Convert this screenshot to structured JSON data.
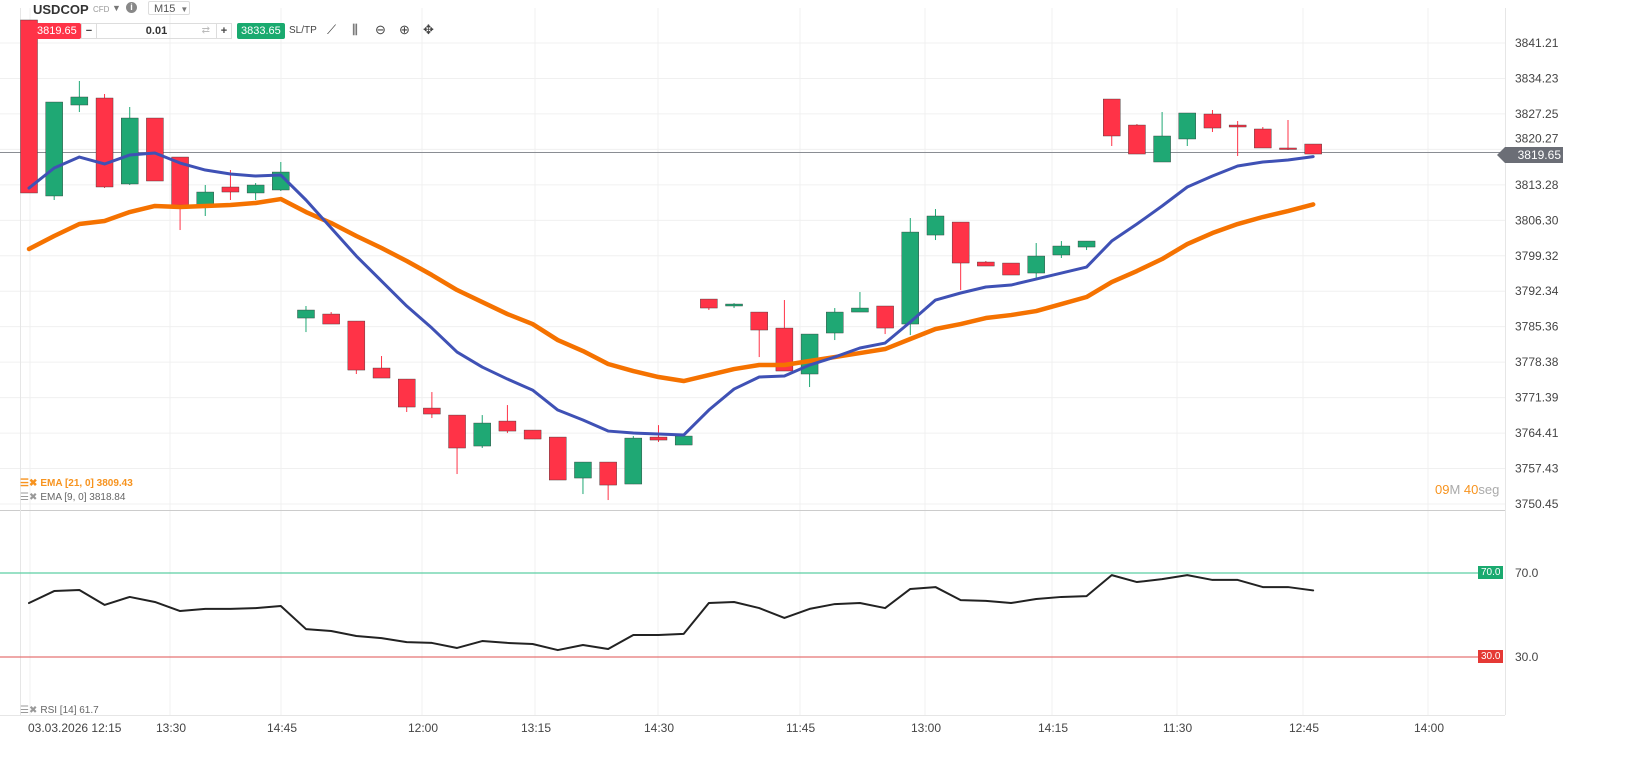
{
  "header": {
    "symbol": "USDCOP",
    "type": "CFD",
    "timeframe": "M15"
  },
  "trade": {
    "sell_price": "3819.65",
    "quantity": "0.01",
    "buy_price": "3833.65",
    "sltp_label": "SL/TP",
    "minus": "−",
    "plus": "+"
  },
  "toolbar_icons": [
    "line-chart-icon",
    "candlestick-icon",
    "zoom-out-icon",
    "zoom-in-icon",
    "move-icon"
  ],
  "legends": {
    "ema21": "EMA [21, 0] 3809.43",
    "ema9": "EMA [9, 0] 3818.84",
    "rsi": "RSI [14] 61.7"
  },
  "countdown": {
    "min": "09",
    "min_unit": "M ",
    "sec": "40",
    "sec_unit": "seg"
  },
  "last_price_label": "3819.65",
  "rsi_levels": {
    "upper": "70.0",
    "lower": "30.0"
  },
  "colors": {
    "up": "#1fa874",
    "down": "#ff3347",
    "ema9": "#3f51b5",
    "ema21": "#f57200",
    "rsi": "#222222",
    "rsi_upper": "#5ccfa4",
    "rsi_lower": "#e57373"
  },
  "chart_data": [
    {
      "type": "candlestick",
      "ylim": [
        3750.45,
        3841.21
      ],
      "yticks": [
        "3841.21",
        "3834.23",
        "3827.25",
        "3820.27",
        "3813.28",
        "3806.30",
        "3799.32",
        "3792.34",
        "3785.36",
        "3778.38",
        "3771.39",
        "3764.41",
        "3757.43",
        "3750.45"
      ],
      "xticks": [
        "03.03.2026 12:15",
        "13:30",
        "14:45",
        "12:00",
        "13:15",
        "14:30",
        "11:45",
        "13:00",
        "14:15",
        "11:30",
        "12:45",
        "14:00"
      ],
      "last_price": 3819.65,
      "ohlc": [
        [
          3845.74,
          3845.74,
          3811.68,
          3811.68
        ],
        [
          3811.09,
          3829.59,
          3810.3,
          3829.59
        ],
        [
          3829.0,
          3833.73,
          3827.62,
          3830.58
        ],
        [
          3830.38,
          3831.17,
          3812.66,
          3812.86
        ],
        [
          3813.45,
          3828.61,
          3813.25,
          3826.44
        ],
        [
          3826.44,
          3826.44,
          3814.04,
          3814.04
        ],
        [
          3818.76,
          3818.76,
          3804.39,
          3809.31
        ],
        [
          3809.31,
          3813.25,
          3807.15,
          3811.87
        ],
        [
          3812.86,
          3816.2,
          3810.3,
          3811.87
        ],
        [
          3811.68,
          3813.64,
          3810.3,
          3813.25
        ],
        [
          3812.27,
          3817.78,
          3812.07,
          3815.81
        ],
        [
          3787.06,
          3789.43,
          3784.3,
          3788.64
        ],
        [
          3787.85,
          3788.24,
          3785.88,
          3785.88
        ],
        [
          3786.47,
          3786.47,
          3776.04,
          3776.82
        ],
        [
          3777.22,
          3779.58,
          3775.25,
          3775.25
        ],
        [
          3775.05,
          3775.05,
          3768.56,
          3769.54
        ],
        [
          3769.34,
          3772.49,
          3767.37,
          3768.16
        ],
        [
          3767.96,
          3767.96,
          3756.35,
          3761.47
        ],
        [
          3761.86,
          3767.96,
          3761.47,
          3766.39
        ],
        [
          3766.78,
          3769.93,
          3764.42,
          3764.81
        ],
        [
          3765.01,
          3765.01,
          3763.24,
          3763.24
        ],
        [
          3763.63,
          3763.63,
          3755.17,
          3755.17
        ],
        [
          3755.56,
          3758.71,
          3752.41,
          3758.71
        ],
        [
          3758.71,
          3758.71,
          3751.23,
          3754.18
        ],
        [
          3754.38,
          3763.83,
          3754.38,
          3763.43
        ],
        [
          3763.63,
          3765.99,
          3762.65,
          3763.04
        ],
        [
          3762.06,
          3763.83,
          3762.06,
          3763.83
        ],
        [
          3790.8,
          3790.8,
          3788.64,
          3789.03
        ],
        [
          3789.43,
          3790.0,
          3789.03,
          3789.82
        ],
        [
          3788.24,
          3788.24,
          3779.38,
          3784.7
        ],
        [
          3785.09,
          3790.61,
          3776.63,
          3776.63
        ],
        [
          3776.04,
          3783.91,
          3773.48,
          3783.91
        ],
        [
          3784.11,
          3789.03,
          3782.73,
          3788.24
        ],
        [
          3788.24,
          3792.18,
          3788.24,
          3789.03
        ],
        [
          3789.43,
          3789.43,
          3783.91,
          3785.09
        ],
        [
          3785.88,
          3806.75,
          3783.71,
          3803.99
        ],
        [
          3803.4,
          3808.52,
          3802.42,
          3807.15
        ],
        [
          3805.96,
          3805.96,
          3792.58,
          3797.89
        ],
        [
          3798.09,
          3798.29,
          3797.3,
          3797.3
        ],
        [
          3797.89,
          3797.89,
          3795.53,
          3795.53
        ],
        [
          3795.92,
          3801.83,
          3794.54,
          3799.27
        ],
        [
          3799.47,
          3802.22,
          3798.88,
          3801.24
        ],
        [
          3801.04,
          3802.22,
          3800.45,
          3802.22
        ],
        [
          3830.18,
          3830.18,
          3820.93,
          3822.9
        ],
        [
          3825.06,
          3825.26,
          3819.35,
          3819.35
        ],
        [
          3817.78,
          3827.62,
          3817.78,
          3822.9
        ],
        [
          3822.31,
          3827.43,
          3820.93,
          3827.43
        ],
        [
          3827.23,
          3828.02,
          3823.69,
          3824.47
        ],
        [
          3825.06,
          3825.85,
          3818.96,
          3824.67
        ],
        [
          3824.28,
          3824.67,
          3820.54,
          3820.54
        ],
        [
          3820.54,
          3826.05,
          3820.14,
          3820.34
        ],
        [
          3821.32,
          3821.32,
          3819.35,
          3819.35
        ]
      ],
      "series": [
        {
          "name": "EMA [9, 0]",
          "values": [
            3812.66,
            3816.6,
            3818.76,
            3817.39,
            3819.16,
            3819.55,
            3817.58,
            3816.2,
            3815.42,
            3815.02,
            3815.22,
            3810.3,
            3804.78,
            3799.27,
            3794.35,
            3789.43,
            3785.09,
            3780.37,
            3777.41,
            3775.05,
            3772.88,
            3768.95,
            3766.98,
            3764.81,
            3764.42,
            3764.22,
            3764.03,
            3768.95,
            3773.08,
            3775.45,
            3775.64,
            3777.81,
            3779.38,
            3781.16,
            3782.14,
            3786.28,
            3790.61,
            3791.99,
            3793.17,
            3793.56,
            3794.74,
            3795.92,
            3797.1,
            3802.22,
            3805.57,
            3809.12,
            3812.86,
            3815.02,
            3816.99,
            3817.78,
            3818.17,
            3818.84
          ]
        },
        {
          "name": "EMA [21, 0]",
          "values": [
            3800.65,
            3803.21,
            3805.57,
            3806.16,
            3807.93,
            3809.12,
            3808.92,
            3809.12,
            3809.31,
            3809.71,
            3810.49,
            3807.93,
            3805.77,
            3803.21,
            3800.85,
            3798.29,
            3795.53,
            3792.58,
            3790.21,
            3787.85,
            3785.88,
            3782.73,
            3780.57,
            3778.01,
            3776.63,
            3775.45,
            3774.66,
            3775.84,
            3777.02,
            3777.81,
            3777.81,
            3778.6,
            3779.38,
            3780.17,
            3780.96,
            3782.93,
            3784.9,
            3785.88,
            3787.06,
            3787.65,
            3788.44,
            3789.82,
            3791.2,
            3794.15,
            3796.32,
            3798.68,
            3801.63,
            3803.8,
            3805.57,
            3806.95,
            3808.13,
            3809.43
          ]
        }
      ]
    },
    {
      "type": "line",
      "name": "RSI [14]",
      "levels": [
        70,
        30
      ],
      "yticks": [
        "70.0",
        "30.0"
      ],
      "values": [
        55.7,
        61.4,
        61.9,
        54.8,
        58.6,
        56.2,
        51.9,
        52.9,
        52.9,
        53.3,
        54.3,
        43.3,
        42.4,
        40.0,
        39.0,
        37.1,
        36.7,
        34.3,
        37.6,
        36.7,
        36.2,
        33.3,
        35.7,
        33.8,
        40.5,
        40.5,
        41.0,
        55.7,
        56.2,
        53.3,
        48.6,
        52.9,
        55.2,
        55.7,
        53.3,
        62.4,
        63.3,
        57.1,
        56.7,
        55.7,
        57.6,
        58.6,
        59.0,
        69.0,
        65.7,
        67.1,
        69.0,
        66.7,
        66.7,
        63.3,
        63.3,
        61.7
      ]
    }
  ]
}
